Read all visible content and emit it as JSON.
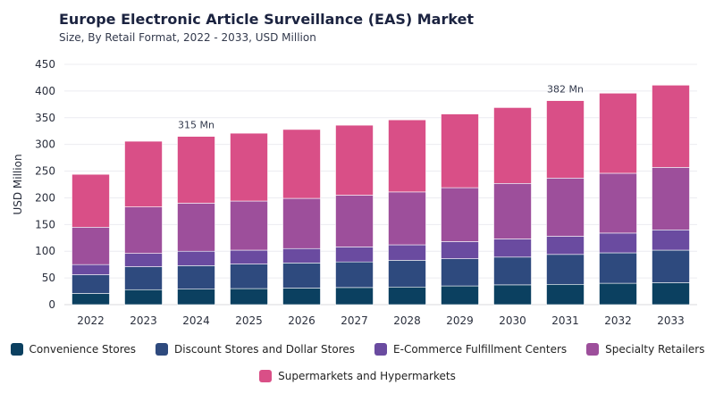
{
  "title": "Europe Electronic Article Surveillance (EAS) Market",
  "subtitle": "Size, By Retail Format, 2022 - 2033, USD Million",
  "chart_data": {
    "type": "bar",
    "stacked": true,
    "ylabel": "USD Million",
    "ylim": [
      0,
      450
    ],
    "yticks": [
      "0",
      "50",
      "100",
      "150",
      "200",
      "250",
      "300",
      "350",
      "400",
      "450"
    ],
    "grid": true,
    "legend_position": "bottom",
    "categories": [
      "2022",
      "2023",
      "2024",
      "2025",
      "2026",
      "2027",
      "2028",
      "2029",
      "2030",
      "2031",
      "2032",
      "2033"
    ],
    "series": [
      {
        "name": "Convenience Stores",
        "color": "#0b4060",
        "values": [
          21,
          28,
          29,
          30,
          31,
          32,
          33,
          35,
          37,
          38,
          40,
          41
        ]
      },
      {
        "name": "Discount Stores and Dollar Stores",
        "color": "#2e4a7e",
        "values": [
          35,
          43,
          44,
          46,
          47,
          48,
          50,
          51,
          52,
          56,
          57,
          61
        ]
      },
      {
        "name": "E-Commerce Fulfillment Centers",
        "color": "#6a4ba0",
        "values": [
          19,
          25,
          27,
          26,
          27,
          28,
          29,
          32,
          34,
          34,
          37,
          38
        ]
      },
      {
        "name": "Specialty Retailers",
        "color": "#9d4f9b",
        "values": [
          70,
          87,
          90,
          92,
          94,
          97,
          99,
          101,
          104,
          109,
          112,
          117
        ]
      },
      {
        "name": "Supermarkets and Hypermarkets",
        "color": "#d94f87",
        "values": [
          99,
          123,
          125,
          127,
          129,
          131,
          135,
          138,
          142,
          145,
          150,
          154
        ]
      }
    ],
    "annotations": [
      {
        "category": "2024",
        "text": "315 Mn"
      },
      {
        "category": "2031",
        "text": "382 Mn"
      }
    ]
  }
}
